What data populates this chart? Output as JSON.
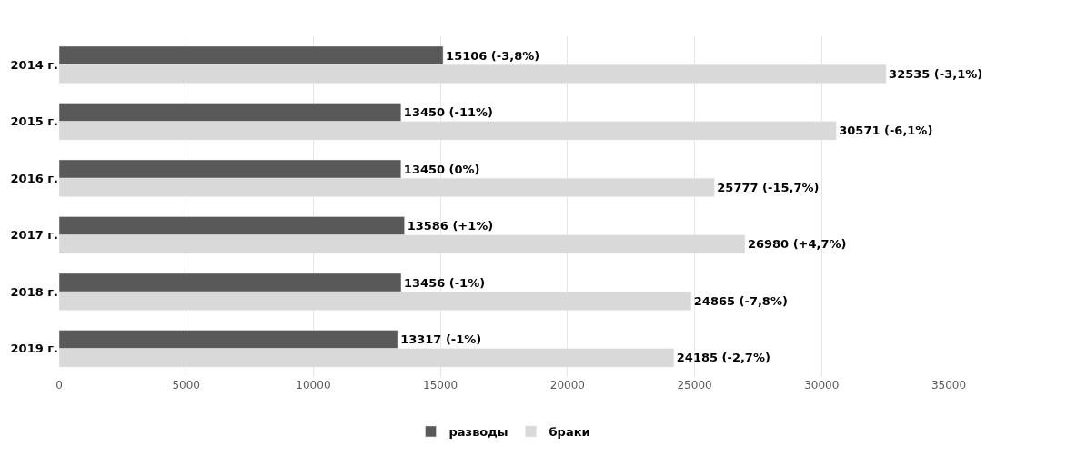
{
  "chart_data": {
    "type": "bar",
    "orientation": "horizontal",
    "categories": [
      "2014 г.",
      "2015 г.",
      "2016 г.",
      "2017 г.",
      "2018 г.",
      "2019 г."
    ],
    "series": [
      {
        "name": "разводы",
        "color": "#595959",
        "values": [
          15106,
          13450,
          13450,
          13586,
          13456,
          13317
        ],
        "value_labels": [
          "15106 (-3,8%)",
          "13450 (-11%)",
          "13450 (0%)",
          "13586 (+1%)",
          "13456 (-1%)",
          "13317 (-1%)"
        ]
      },
      {
        "name": "браки",
        "color": "#d9d9d9",
        "values": [
          32535,
          30571,
          25777,
          26980,
          24865,
          24185
        ],
        "value_labels": [
          "32535 (-3,1%)",
          "30571 (-6,1%)",
          "25777 (-15,7%)",
          "26980 (+4,7%)",
          "24865 (-7,8%)",
          "24185 (-2,7%)"
        ]
      }
    ],
    "xlim": [
      0,
      35000
    ],
    "xticks": [
      0,
      5000,
      10000,
      15000,
      20000,
      25000,
      30000,
      35000
    ],
    "grid": "x",
    "legend": "bottom"
  }
}
